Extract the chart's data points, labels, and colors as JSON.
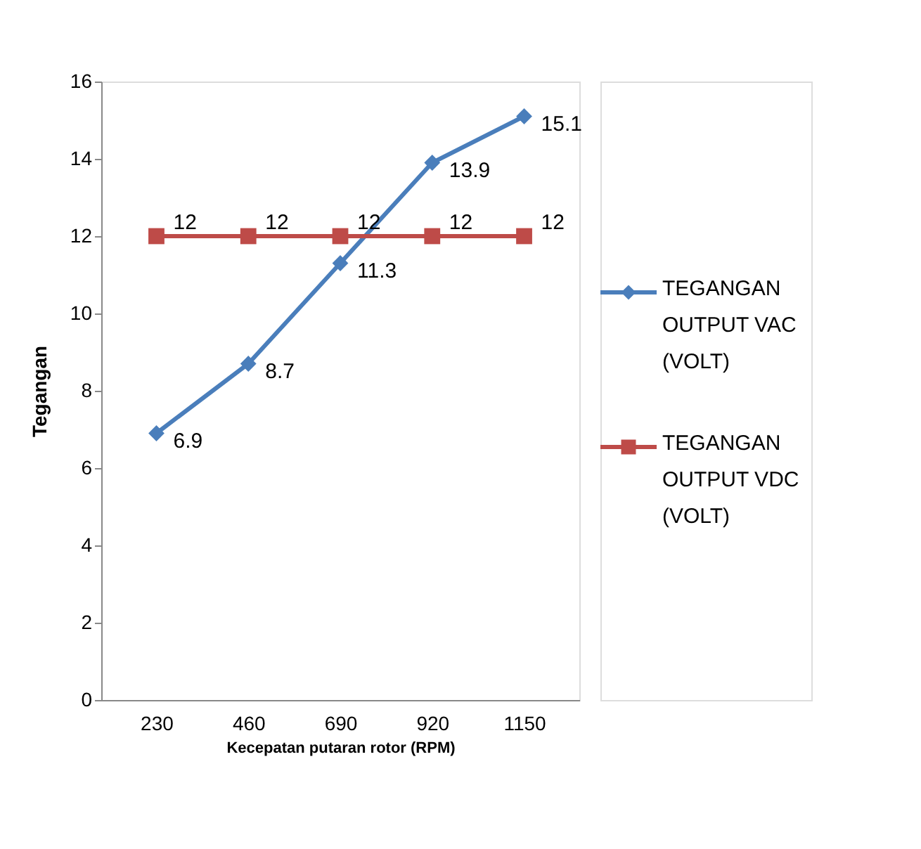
{
  "chart_data": {
    "type": "line",
    "xlabel": "Kecepatan putaran rotor (RPM)",
    "ylabel": "Tegangan",
    "categories": [
      "230",
      "460",
      "690",
      "920",
      "1150"
    ],
    "series": [
      {
        "name": "TEGANGAN OUTPUT VAC (VOLT)",
        "color": "#4a7ebb",
        "values": [
          6.9,
          8.7,
          11.3,
          13.9,
          15.1
        ],
        "marker": "diamond"
      },
      {
        "name": "TEGANGAN OUTPUT VDC (VOLT)",
        "color": "#be4b48",
        "values": [
          12,
          12,
          12,
          12,
          12
        ],
        "marker": "square"
      }
    ],
    "ylim": [
      0,
      16
    ],
    "yticks": [
      0,
      2,
      4,
      6,
      8,
      10,
      12,
      14,
      16
    ],
    "grid": false,
    "legend": "right",
    "data_labels": true,
    "line_style": "solid"
  }
}
